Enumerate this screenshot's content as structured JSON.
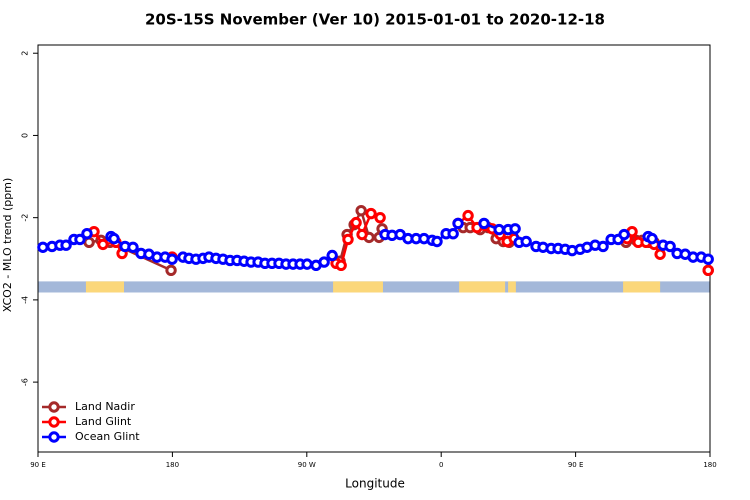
{
  "chart_data": {
    "type": "line",
    "title": "20S-15S November (Ver 10)   2015-01-01 to 2020-12-18",
    "x_label": "Longitude",
    "y_label": "XCO2 - MLO trend (ppm)",
    "xlim": [
      90,
      540
    ],
    "ylim": [
      -7.7,
      2.2
    ],
    "xticks": [
      {
        "value": 90,
        "label": "90 E"
      },
      180,
      {
        "value": 270,
        "label": "90 W"
      },
      {
        "value": 360,
        "label": "0"
      },
      {
        "value": 450,
        "label": "90 E"
      },
      {
        "value": 540,
        "label": "180"
      }
    ],
    "yticks": [
      2,
      0,
      -2,
      -4,
      -6
    ],
    "legend": "bottom-left",
    "surface_strip": {
      "ylim": [
        -3.82,
        -3.55
      ],
      "ocean_color": "#a4b8d9",
      "land_color": "#fbd77a",
      "land": [
        [
          122.1,
          147.6
        ],
        [
          287.6,
          321
        ],
        [
          372,
          402.8
        ],
        [
          404.8,
          410
        ],
        [
          481.8,
          506.6
        ]
      ]
    },
    "series": [
      {
        "name": "Land Nadir",
        "color": "#a52a2a",
        "x": [
          124.2,
          132.2,
          138.2,
          179.1,
          null,
          292.3,
          297,
          301.7,
          306.4,
          311.7,
          318.4,
          320.4,
          null,
          374.7,
          379.4,
          386.1,
          391.4,
          396.8,
          401.5,
          405.5,
          null,
          483.8,
          490.5,
          494.6,
          499.3,
          502.6,
          null,
          538.8
        ],
        "values": [
          -2.6,
          -2.55,
          -2.6,
          -3.28,
          null,
          -3.06,
          -2.41,
          -2.17,
          -1.83,
          -2.48,
          -2.48,
          -2.27,
          null,
          -2.24,
          -2.24,
          -2.29,
          -2.24,
          -2.51,
          -2.58,
          -2.6,
          null,
          -2.6,
          -2.55,
          -2.55,
          -2.6,
          -2.6,
          null,
          -3.28
        ]
      },
      {
        "name": "Land Glint",
        "color": "#ff0000",
        "x": [
          127.5,
          133.5,
          142.2,
          146.3,
          null,
          179.8,
          null,
          289.6,
          293,
          297.6,
          303,
          307,
          313,
          319.1,
          null,
          371.3,
          378,
          384,
          389.4,
          394.1,
          399.5,
          404.2,
          408.9,
          null,
          484.5,
          487.8,
          491.9,
          497.2,
          502.6,
          506.6,
          null,
          538.8
        ],
        "values": [
          -2.34,
          -2.65,
          -2.6,
          -2.87,
          null,
          -2.96,
          null,
          -3.11,
          -3.16,
          -2.53,
          -2.12,
          -2.41,
          -1.9,
          -2.0,
          null,
          -2.14,
          -1.95,
          -2.24,
          -2.19,
          -2.27,
          -2.41,
          -2.58,
          -2.51,
          null,
          -2.51,
          -2.34,
          -2.6,
          -2.6,
          -2.65,
          -2.89,
          null,
          -3.28
        ]
      },
      {
        "name": "Ocean Glint",
        "color": "#0000ff",
        "x": [
          93.3,
          99.4,
          104.7,
          108.8,
          114.1,
          118.1,
          122.8,
          null,
          138.9,
          140.9,
          148.3,
          153.6,
          159,
          164.3,
          169.7,
          175.1,
          179.8,
          187.1,
          191.1,
          195.8,
          200.5,
          204.5,
          209.2,
          213.9,
          218.6,
          223.3,
          228,
          232.7,
          237.4,
          242,
          246.7,
          251.4,
          256.1,
          260.8,
          265.5,
          270.2,
          276.2,
          281.6,
          287,
          null,
          322.4,
          327.1,
          332.5,
          337.8,
          343.2,
          348.5,
          353.9,
          357.2,
          363.3,
          368,
          371.3,
          null,
          388.7,
          398.8,
          404.8,
          409.5,
          412.2,
          416.9,
          423.5,
          428.2,
          433.6,
          438.3,
          443,
          447.7,
          453,
          457.7,
          463.1,
          468.4,
          473.8,
          478.5,
          482.5,
          null,
          498.6,
          501.2,
          508.6,
          513.3,
          518,
          523.4,
          528.7,
          534.1,
          538.8
        ],
        "values": [
          -2.72,
          -2.7,
          -2.67,
          -2.67,
          -2.53,
          -2.53,
          -2.39,
          null,
          -2.46,
          -2.51,
          -2.7,
          -2.72,
          -2.87,
          -2.89,
          -2.96,
          -2.96,
          -3.01,
          -2.96,
          -2.99,
          -3.01,
          -2.99,
          -2.96,
          -2.99,
          -3.01,
          -3.04,
          -3.04,
          -3.06,
          -3.08,
          -3.08,
          -3.11,
          -3.11,
          -3.11,
          -3.13,
          -3.13,
          -3.13,
          -3.13,
          -3.16,
          -3.08,
          -2.92,
          null,
          -2.41,
          -2.43,
          -2.41,
          -2.51,
          -2.51,
          -2.51,
          -2.55,
          -2.58,
          -2.39,
          -2.39,
          -2.14,
          null,
          -2.14,
          -2.29,
          -2.29,
          -2.27,
          -2.6,
          -2.58,
          -2.7,
          -2.72,
          -2.75,
          -2.75,
          -2.77,
          -2.8,
          -2.77,
          -2.72,
          -2.67,
          -2.7,
          -2.53,
          -2.53,
          -2.41,
          null,
          -2.46,
          -2.51,
          -2.67,
          -2.7,
          -2.87,
          -2.89,
          -2.96,
          -2.96,
          -3.01
        ]
      }
    ]
  }
}
